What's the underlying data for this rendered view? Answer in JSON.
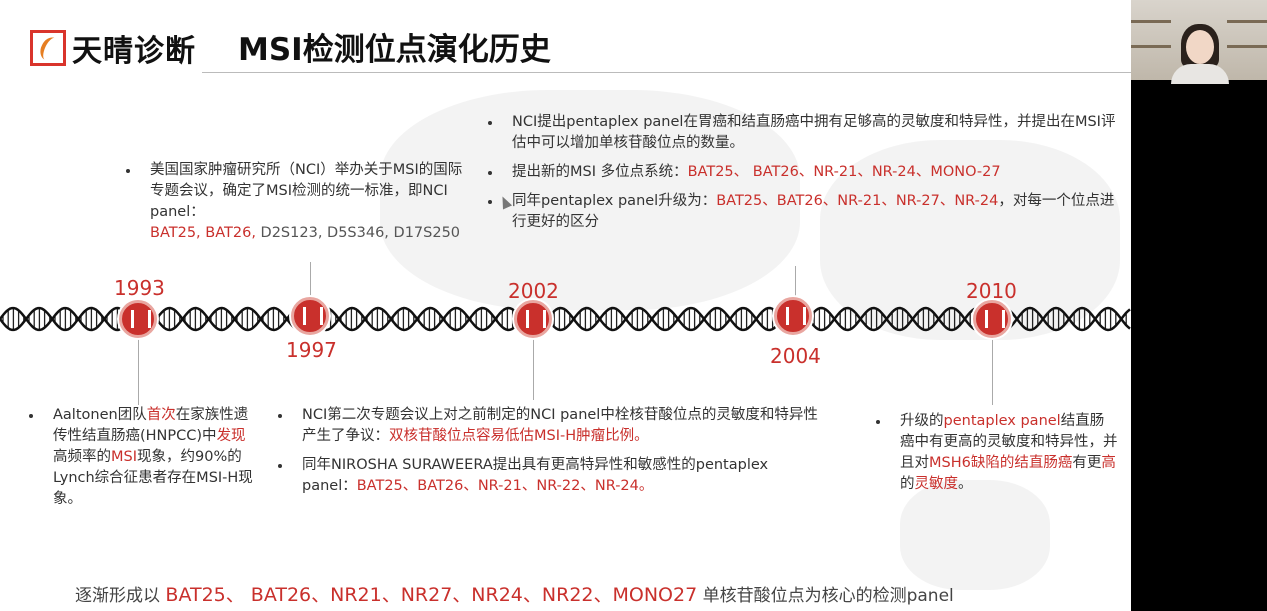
{
  "header": {
    "brand": "天晴诊断",
    "title": "MSI检测位点演化历史"
  },
  "accent_color": "#c9302c",
  "timeline": [
    {
      "year": "1993"
    },
    {
      "year": "1997"
    },
    {
      "year": "2002"
    },
    {
      "year": "2004"
    },
    {
      "year": "2010"
    }
  ],
  "blocks": {
    "b1997_top": [
      [
        {
          "t": "美国国家肿瘤研究所（NCI）举办关于MSI的国际专题会议，确定了MSI检测的统一标准，即NCI panel：",
          "c": ""
        }
      ],
      [
        {
          "t": " BAT25, BAT26,",
          "c": "r"
        },
        {
          "t": " D2S123, D5S346, D17S250",
          "c": "g"
        }
      ]
    ],
    "b2004_top": [
      [
        {
          "t": "NCI提出pentaplex panel在胃癌和结直肠癌中拥有足够高的灵敏度和特异性，并提出在MSI评估中可以增加单核苷酸位点的数量。",
          "c": ""
        }
      ],
      [
        {
          "t": "提出新的MSI 多位点系统：",
          "c": ""
        },
        {
          "t": "BAT25、 BAT26、NR-21、NR-24、MONO-27",
          "c": "r"
        }
      ],
      [
        {
          "t": "同年pentaplex panel升级为：",
          "c": ""
        },
        {
          "t": "BAT25、BAT26、NR-21、NR-27、NR-24",
          "c": "r"
        },
        {
          "t": "，对每一个位点进行更好的区分",
          "c": ""
        }
      ]
    ],
    "b1993_bottom": [
      [
        {
          "t": "Aaltonen团队",
          "c": ""
        },
        {
          "t": "首次",
          "c": "r"
        },
        {
          "t": "在家族性遗传性结直肠癌(HNPCC)中",
          "c": ""
        },
        {
          "t": "发现",
          "c": "r"
        },
        {
          "t": "高频率的",
          "c": ""
        },
        {
          "t": "MSI",
          "c": "r"
        },
        {
          "t": "现象，约90%的Lynch综合征患者存在MSI-H现象。",
          "c": ""
        }
      ]
    ],
    "b2002_bottom": [
      [
        {
          "t": "NCI第二次专题会议上对之前制定的NCI panel中栓核苷酸位点的灵敏度和特异性产生了争议：",
          "c": ""
        },
        {
          "t": "双核苷酸位点容易低估MSI-H肿瘤比例。",
          "c": "r"
        }
      ],
      [
        {
          "t": "同年NIROSHA SURAWEERA提出具有更高特异性和敏感性的pentaplex panel：",
          "c": ""
        },
        {
          "t": "BAT25、BAT26、NR-21、NR-22、NR-24。",
          "c": "r"
        }
      ]
    ],
    "b2010_bottom": [
      [
        {
          "t": "升级的",
          "c": ""
        },
        {
          "t": "pentaplex panel",
          "c": "r"
        },
        {
          "t": "结直肠癌中有更高的灵敏度和特异性，并且对",
          "c": ""
        },
        {
          "t": "MSH6缺陷的结直肠癌",
          "c": "r"
        },
        {
          "t": "有更",
          "c": ""
        },
        {
          "t": "高",
          "c": "r"
        },
        {
          "t": "的",
          "c": ""
        },
        {
          "t": "灵敏度",
          "c": "r"
        },
        {
          "t": "。",
          "c": ""
        }
      ]
    ]
  },
  "footer": [
    {
      "t": "逐渐形成以 ",
      "c": ""
    },
    {
      "t": "BAT25、 BAT26、NR21、NR27、NR24、NR22、MONO27",
      "c": "r"
    },
    {
      "t": " 单核苷酸位点为核心的检测panel",
      "c": ""
    }
  ]
}
